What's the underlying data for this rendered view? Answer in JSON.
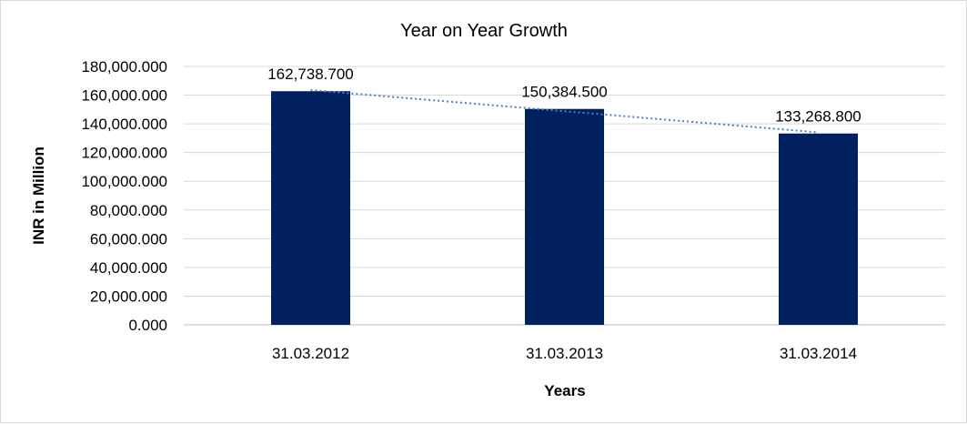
{
  "chart_data": {
    "type": "bar",
    "title": "Year on Year Growth",
    "xlabel": "Years",
    "ylabel": "INR in Million",
    "categories": [
      "31.03.2012",
      "31.03.2013",
      "31.03.2014"
    ],
    "series": [
      {
        "values": [
          162738.7,
          150384.5,
          133268.8
        ],
        "data_labels": [
          "162,738.700",
          "150,384.500",
          "133,268.800"
        ],
        "color": "#002060"
      }
    ],
    "trendline": {
      "type": "linear",
      "style": "dotted",
      "color": "#4f81bd"
    },
    "ylim": [
      0,
      180000
    ],
    "ytick_step": 20000,
    "ytick_labels": [
      "0.000",
      "20,000.000",
      "40,000.000",
      "60,000.000",
      "80,000.000",
      "100,000.000",
      "120,000.000",
      "140,000.000",
      "160,000.000",
      "180,000.000"
    ],
    "grid": true,
    "legend": "none"
  }
}
